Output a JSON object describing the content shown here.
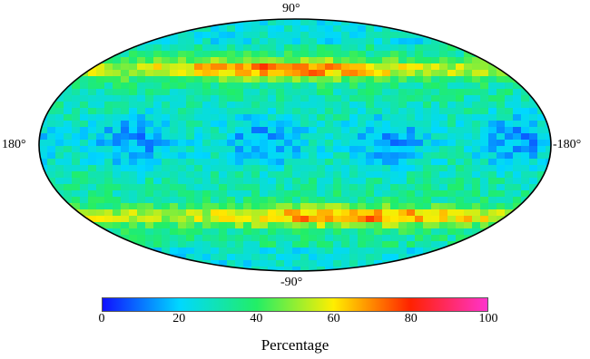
{
  "map": {
    "projection": "Hammer-Aitoff",
    "outline_color": "#000000",
    "labels": {
      "top": "90°",
      "bottom": "-90°",
      "left": "180°",
      "right": "-180°"
    },
    "bands": [
      {
        "lat_min": 45,
        "lat_max": 62,
        "level": "high"
      },
      {
        "lat_min": -60,
        "lat_max": -42,
        "level": "high"
      },
      {
        "lat_min": -25,
        "lat_max": 30,
        "level": "low"
      }
    ]
  },
  "colorbar": {
    "title": "Percentage",
    "min": 0,
    "max": 100,
    "ticks": [
      "0",
      "20",
      "40",
      "60",
      "80",
      "100"
    ],
    "stops": [
      {
        "value": 0,
        "color": "#1010ff"
      },
      {
        "value": 20,
        "color": "#00d8ff"
      },
      {
        "value": 40,
        "color": "#22ee66"
      },
      {
        "value": 60,
        "color": "#ffee00"
      },
      {
        "value": 80,
        "color": "#ff2200"
      },
      {
        "value": 100,
        "color": "#ff33cc"
      }
    ]
  }
}
